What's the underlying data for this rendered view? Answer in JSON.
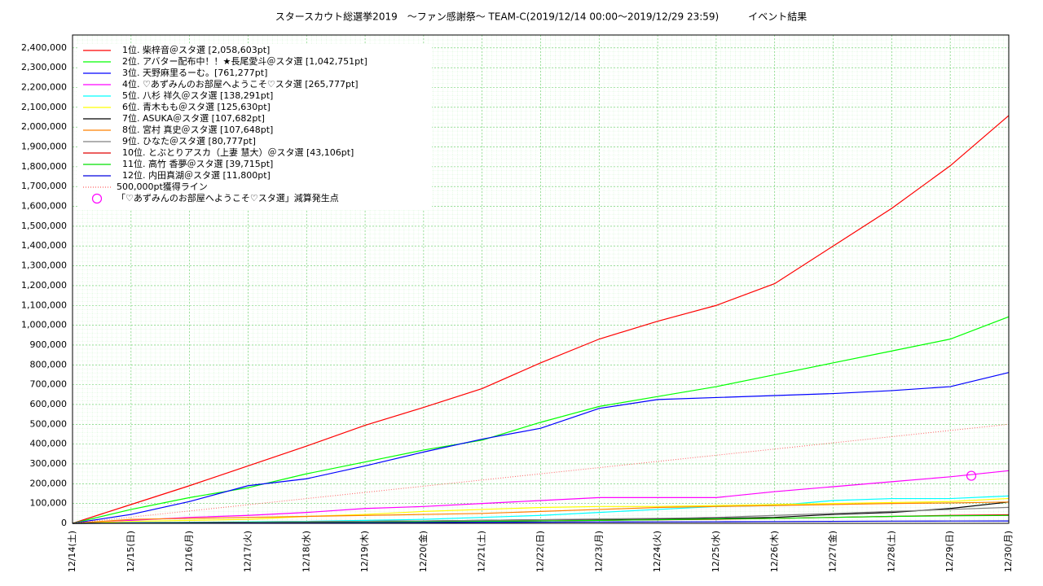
{
  "chart_data": {
    "type": "line",
    "title": "スタースカウト総選挙2019　～ファン感謝祭～ TEAM-C(2019/12/14 00:00～2019/12/29 23:59)　　　イベント結果",
    "x": [
      0,
      1,
      2,
      3,
      4,
      5,
      6,
      7,
      8,
      9,
      10,
      11,
      12,
      13,
      14,
      15,
      16
    ],
    "xlim": [
      0,
      16
    ],
    "xticks": [
      {
        "value": 0,
        "label": "12/14(土)"
      },
      {
        "value": 1,
        "label": "12/15(日)"
      },
      {
        "value": 2,
        "label": "12/16(月)"
      },
      {
        "value": 3,
        "label": "12/17(火)"
      },
      {
        "value": 4,
        "label": "12/18(水)"
      },
      {
        "value": 5,
        "label": "12/19(木)"
      },
      {
        "value": 6,
        "label": "12/20(金)"
      },
      {
        "value": 7,
        "label": "12/21(土)"
      },
      {
        "value": 8,
        "label": "12/22(日)"
      },
      {
        "value": 9,
        "label": "12/23(月)"
      },
      {
        "value": 10,
        "label": "12/24(火)"
      },
      {
        "value": 11,
        "label": "12/25(水)"
      },
      {
        "value": 12,
        "label": "12/26(木)"
      },
      {
        "value": 13,
        "label": "12/27(金)"
      },
      {
        "value": 14,
        "label": "12/28(土)"
      },
      {
        "value": 15,
        "label": "12/29(日)"
      },
      {
        "value": 16,
        "label": "12/30(月)"
      }
    ],
    "ylim": [
      0,
      2465000
    ],
    "yticks": [
      0,
      {
        "value": 100000,
        "label": "100,000"
      },
      {
        "value": 200000,
        "label": "200,000"
      },
      {
        "value": 300000,
        "label": "300,000"
      },
      {
        "value": 400000,
        "label": "400,000"
      },
      {
        "value": 500000,
        "label": "500,000"
      },
      {
        "value": 600000,
        "label": "600,000"
      },
      {
        "value": 700000,
        "label": "700,000"
      },
      {
        "value": 800000,
        "label": "800,000"
      },
      {
        "value": 900000,
        "label": "900,000"
      },
      {
        "value": 1000000,
        "label": "1,000,000"
      },
      {
        "value": 1100000,
        "label": "1,100,000"
      },
      {
        "value": 1200000,
        "label": "1,200,000"
      },
      {
        "value": 1300000,
        "label": "1,300,000"
      },
      {
        "value": 1400000,
        "label": "1,400,000"
      },
      {
        "value": 1500000,
        "label": "1,500,000"
      },
      {
        "value": 1600000,
        "label": "1,600,000"
      },
      {
        "value": 1700000,
        "label": "1,700,000"
      },
      {
        "value": 1800000,
        "label": "1,800,000"
      },
      {
        "value": 1900000,
        "label": "1,900,000"
      },
      {
        "value": 2000000,
        "label": "2,000,000"
      },
      {
        "value": 2100000,
        "label": "2,100,000"
      },
      {
        "value": 2200000,
        "label": "2,200,000"
      },
      {
        "value": 2300000,
        "label": "2,300,000"
      },
      {
        "value": 2400000,
        "label": "2,400,000"
      }
    ],
    "grid": true,
    "legend": "top-left",
    "series": [
      {
        "name": "1位. 柴梓音＠スタ選 [2,058,603pt]",
        "color": "#ff0000",
        "values": [
          0,
          95000,
          190000,
          290000,
          390000,
          495000,
          585000,
          680000,
          810000,
          930000,
          1020000,
          1100000,
          1210000,
          1400000,
          1590000,
          1805000,
          2058603
        ]
      },
      {
        "name": "2位. アバター配布中！！★長尾愛斗＠スタ選 [1,042,751pt]",
        "color": "#00ff00",
        "values": [
          0,
          70000,
          130000,
          180000,
          250000,
          310000,
          370000,
          420000,
          510000,
          590000,
          640000,
          690000,
          750000,
          810000,
          870000,
          930000,
          1042751
        ]
      },
      {
        "name": "3位. 天野麻里るーむ。[761,277pt]",
        "color": "#0000ff",
        "values": [
          0,
          45000,
          110000,
          190000,
          225000,
          290000,
          360000,
          425000,
          480000,
          580000,
          625000,
          635000,
          645000,
          655000,
          670000,
          690000,
          761277
        ]
      },
      {
        "name": "4位. ♡あずみんのお部屋へようこそ♡スタ選 [265,777pt]",
        "color": "#ff00ff",
        "values": [
          0,
          15000,
          30000,
          40000,
          55000,
          75000,
          85000,
          100000,
          115000,
          130000,
          130000,
          130000,
          160000,
          185000,
          210000,
          235000,
          265777
        ]
      },
      {
        "name": "5位. 八杉 祥久＠スタ選 [138,291pt]",
        "color": "#00ffff",
        "values": [
          0,
          3000,
          5000,
          8000,
          10000,
          15000,
          20000,
          30000,
          40000,
          55000,
          70000,
          85000,
          90000,
          115000,
          125000,
          125000,
          138291
        ]
      },
      {
        "name": "6位. 青木もも＠スタ選 [125,630pt]",
        "color": "#ffff00",
        "values": [
          0,
          10000,
          15000,
          20000,
          35000,
          45000,
          60000,
          70000,
          80000,
          85000,
          85000,
          90000,
          95000,
          100000,
          105000,
          110000,
          125630
        ]
      },
      {
        "name": "7位. ASUKA＠スタ選 [107,682pt]",
        "color": "#000000",
        "values": [
          0,
          2000,
          4000,
          6000,
          8000,
          10000,
          12000,
          15000,
          18000,
          20000,
          22000,
          25000,
          30000,
          45000,
          55000,
          75000,
          107682
        ]
      },
      {
        "name": "8位. 宮村 真史＠スタ選 [107,648pt]",
        "color": "#ff8000",
        "values": [
          0,
          20000,
          25000,
          30000,
          35000,
          40000,
          45000,
          50000,
          60000,
          70000,
          80000,
          85000,
          90000,
          95000,
          100000,
          103000,
          107648
        ]
      },
      {
        "name": "9位. ひなた＠スタ選 [80,777pt]",
        "color": "#808080",
        "values": [
          0,
          1000,
          3000,
          5000,
          8000,
          10000,
          12000,
          15000,
          18000,
          22000,
          25000,
          30000,
          40000,
          50000,
          60000,
          70000,
          80777
        ]
      },
      {
        "name": "10位. とぶとりアスカ（上妻 慧大）＠スタ選 [43,106pt]",
        "color": "#e00000",
        "values": [
          0,
          1000,
          2000,
          3000,
          5000,
          6000,
          8000,
          10000,
          12000,
          15000,
          18000,
          20000,
          25000,
          30000,
          35000,
          40000,
          43106
        ]
      },
      {
        "name": "11位. 高竹 香夢＠スタ選 [39,715pt]",
        "color": "#00e000",
        "values": [
          0,
          1000,
          2000,
          3000,
          4000,
          6000,
          8000,
          10000,
          12000,
          15000,
          18000,
          22000,
          25000,
          30000,
          35000,
          38000,
          39715
        ]
      },
      {
        "name": "12位. 内田真湖＠スタ選 [11,800pt]",
        "color": "#0000e0",
        "values": [
          0,
          500,
          1000,
          1500,
          2000,
          3000,
          4000,
          5000,
          6000,
          7000,
          7500,
          8000,
          9000,
          10000,
          11000,
          11500,
          11800
        ]
      },
      {
        "name": "500,000pt獲得ライン",
        "color": "#ff6060",
        "dash": "dotted",
        "values": [
          0,
          31250,
          62500,
          93750,
          125000,
          156250,
          187500,
          218750,
          250000,
          281250,
          312500,
          343750,
          375000,
          406250,
          437500,
          468750,
          500000
        ]
      }
    ],
    "markers": {
      "name": "「♡あずみんのお部屋へようこそ♡スタ選」減算発生点",
      "color": "#ff00ff",
      "points": [
        {
          "x": 15.36,
          "y": 240000
        }
      ]
    }
  }
}
